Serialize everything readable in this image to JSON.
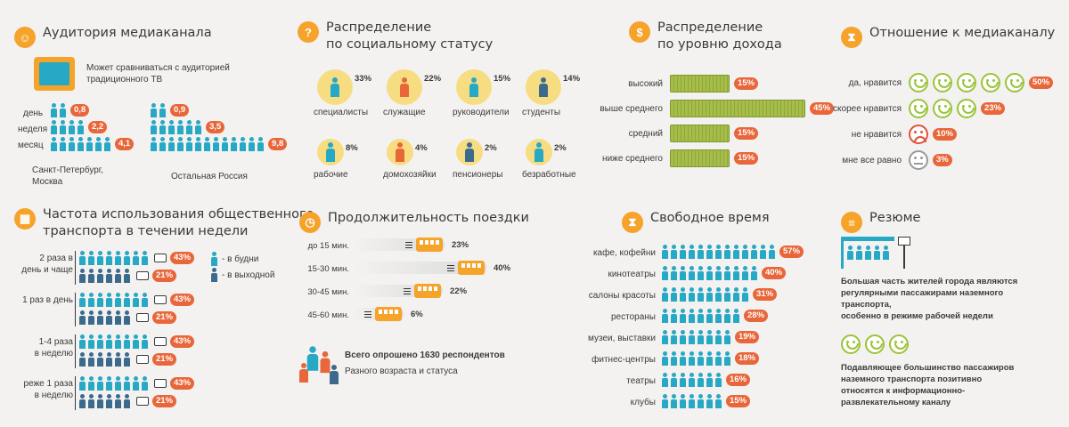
{
  "audience": {
    "title": "Аудитория медиаканала",
    "tv_note": "Может сравниваться с аудиторией\nтрадиционного ТВ",
    "periods": [
      "день",
      "неделя",
      "месяц"
    ],
    "spb_values": [
      "0,8",
      "2,2",
      "4,1"
    ],
    "russia_values": [
      "0,9",
      "3,5",
      "9,8"
    ],
    "spb_label": "Санкт-Петербург,\nМосква",
    "russia_label": "Остальная Россия"
  },
  "social": {
    "title": "Распределение\nпо социальному статусу",
    "items": [
      {
        "label": "специалисты",
        "value": "33%"
      },
      {
        "label": "служащие",
        "value": "22%"
      },
      {
        "label": "руководители",
        "value": "15%"
      },
      {
        "label": "студенты",
        "value": "14%"
      },
      {
        "label": "рабочие",
        "value": "8%"
      },
      {
        "label": "домохозяйки",
        "value": "4%"
      },
      {
        "label": "пенсионеры",
        "value": "2%"
      },
      {
        "label": "безработные",
        "value": "2%"
      }
    ]
  },
  "income": {
    "title": "Распределение\nпо уровню дохода",
    "items": [
      {
        "label": "высокий",
        "value": "15%",
        "share": 15
      },
      {
        "label": "выше среднего",
        "value": "45%",
        "share": 45
      },
      {
        "label": "средний",
        "value": "15%",
        "share": 15
      },
      {
        "label": "ниже среднего",
        "value": "15%",
        "share": 15
      }
    ]
  },
  "attitude": {
    "title": "Отношение к медиаканалу",
    "items": [
      {
        "label": "да, нравится",
        "value": "50%",
        "faces": 5,
        "mood": "happy"
      },
      {
        "label": "скорее нравится",
        "value": "23%",
        "faces": 3,
        "mood": "happy"
      },
      {
        "label": "не нравится",
        "value": "10%",
        "faces": 1,
        "mood": "sad"
      },
      {
        "label": "мне все равно",
        "value": "3%",
        "faces": 1,
        "mood": "meh"
      }
    ]
  },
  "transport": {
    "title": "Частота использования общественного\nтранспорта  в  течении недели",
    "legend_weekday": "- в будни",
    "legend_weekend": "- в выходной",
    "groups": [
      {
        "label": "2 раза в\nдень и чаще",
        "weekday": "43%",
        "weekend": "21%"
      },
      {
        "label": "1 раз в день",
        "weekday": "43%",
        "weekend": "21%"
      },
      {
        "label": "1-4 раза\nв неделю",
        "weekday": "43%",
        "weekend": "21%"
      },
      {
        "label": "реже 1 раза\nв неделю",
        "weekday": "43%",
        "weekend": "21%"
      }
    ]
  },
  "trip": {
    "title": "Продолжительность поездки",
    "items": [
      {
        "label": "до 15 мин.",
        "value": "23%",
        "share": 23
      },
      {
        "label": "15-30 мин.",
        "value": "40%",
        "share": 40
      },
      {
        "label": "30-45 мин.",
        "value": "22%",
        "share": 22
      },
      {
        "label": "45-60 мин.",
        "value": "6%",
        "share": 6
      }
    ],
    "respondents": "Всего опрошено 1630 респондентов",
    "respondents_note": "Разного возраста и статуса"
  },
  "free_time": {
    "title": "Свободное время",
    "items": [
      {
        "label": "кафе, кофейни",
        "value": "57%",
        "icons": 13
      },
      {
        "label": "кинотеатры",
        "value": "40%",
        "icons": 11
      },
      {
        "label": "салоны красоты",
        "value": "31%",
        "icons": 10
      },
      {
        "label": "рестораны",
        "value": "28%",
        "icons": 9
      },
      {
        "label": "музеи, выставки",
        "value": "19%",
        "icons": 8
      },
      {
        "label": "фитнес-центры",
        "value": "18%",
        "icons": 8
      },
      {
        "label": "театры",
        "value": "16%",
        "icons": 7
      },
      {
        "label": "клубы",
        "value": "15%",
        "icons": 7
      }
    ]
  },
  "summary": {
    "title": "Резюме",
    "text1": "Большая часть жителей города являются\nрегулярными пассажирами наземного\nтранспорта,\nособенно в режиме рабочей недели",
    "text2": "Подавляющее большинство пассажиров\nназемного транспорта позитивно\nотносятся к информационно-\nразвлекательному каналу"
  },
  "colors": {
    "accent": "#f5a32a",
    "badge": "#e8663a",
    "teal": "#27a8c5",
    "navy": "#3c6a8d",
    "money": "#a7bd4a",
    "smile": "#9ac43a"
  }
}
